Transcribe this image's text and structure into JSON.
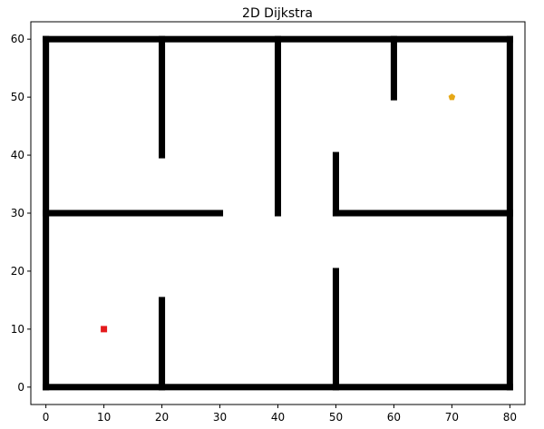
{
  "chart_data": {
    "type": "scatter",
    "title": "2D Dijkstra",
    "xlabel": "",
    "ylabel": "",
    "xlim": [
      -2.6,
      82.6
    ],
    "ylim": [
      -3,
      63
    ],
    "xticks": [
      0,
      10,
      20,
      30,
      40,
      50,
      60,
      70,
      80
    ],
    "yticks": [
      0,
      10,
      20,
      30,
      40,
      50,
      60
    ],
    "grid": false,
    "obstacle_color": "#000000",
    "walls": [
      {
        "from": [
          0,
          0
        ],
        "to": [
          80,
          0
        ]
      },
      {
        "from": [
          0,
          60
        ],
        "to": [
          80,
          60
        ]
      },
      {
        "from": [
          0,
          0
        ],
        "to": [
          0,
          60
        ]
      },
      {
        "from": [
          80,
          0
        ],
        "to": [
          80,
          60
        ]
      },
      {
        "from": [
          0,
          30
        ],
        "to": [
          30,
          30
        ]
      },
      {
        "from": [
          50,
          30
        ],
        "to": [
          80,
          30
        ]
      },
      {
        "from": [
          20,
          40
        ],
        "to": [
          20,
          60
        ]
      },
      {
        "from": [
          40,
          30
        ],
        "to": [
          40,
          60
        ]
      },
      {
        "from": [
          60,
          50
        ],
        "to": [
          60,
          60
        ]
      },
      {
        "from": [
          50,
          30
        ],
        "to": [
          50,
          40
        ]
      },
      {
        "from": [
          20,
          0
        ],
        "to": [
          20,
          15
        ]
      },
      {
        "from": [
          50,
          0
        ],
        "to": [
          50,
          20
        ]
      }
    ],
    "points": [
      {
        "role": "start",
        "x": 10,
        "y": 10,
        "marker": "square",
        "color": "#e41a1c"
      },
      {
        "role": "goal",
        "x": 70,
        "y": 50,
        "marker": "pentagon",
        "color": "#e6a817"
      }
    ]
  }
}
